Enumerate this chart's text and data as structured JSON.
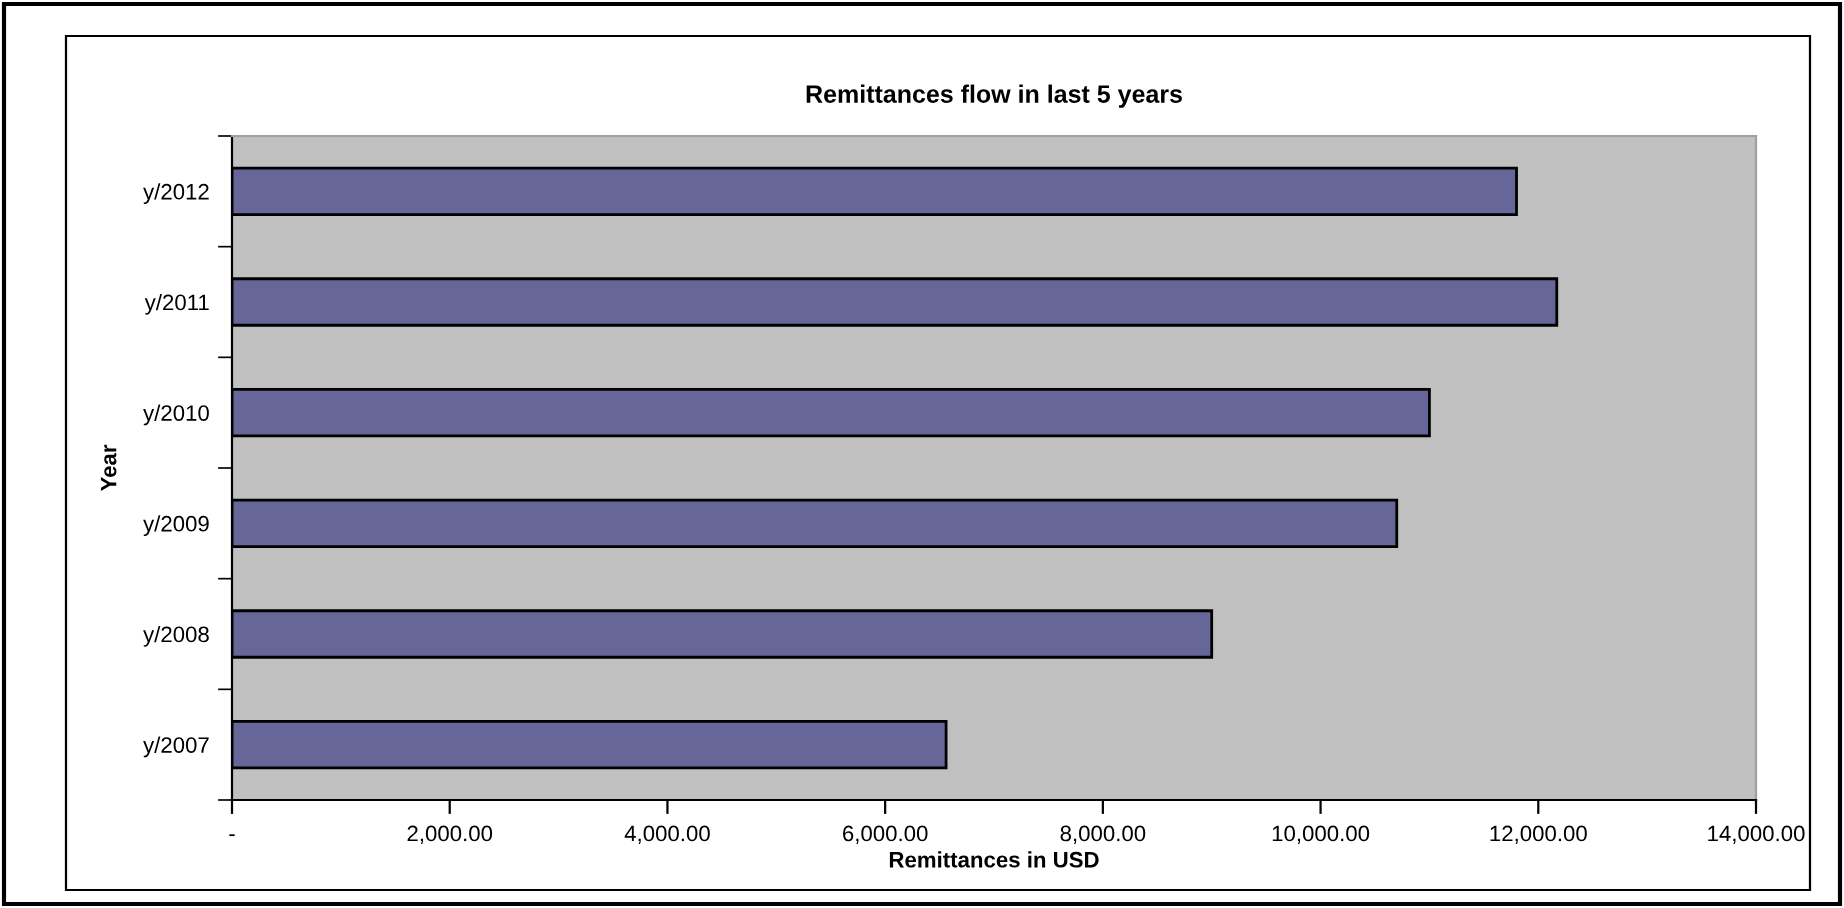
{
  "chart_data": {
    "type": "bar",
    "orientation": "horizontal",
    "title": "Remittances flow in last 5 years",
    "xlabel": "Remittances in USD",
    "ylabel": "Year",
    "categories": [
      "y/2012",
      "y/2011",
      "y/2010",
      "y/2009",
      "y/2008",
      "y/2007"
    ],
    "values": [
      11800,
      12170,
      11000,
      10700,
      9000,
      6560
    ],
    "color": "#666699",
    "xlim": [
      0,
      14000
    ],
    "xticks": [
      {
        "value": 0,
        "label": "-"
      },
      {
        "value": 2000,
        "label": "2,000.00"
      },
      {
        "value": 4000,
        "label": "4,000.00"
      },
      {
        "value": 6000,
        "label": "6,000.00"
      },
      {
        "value": 8000,
        "label": "8,000.00"
      },
      {
        "value": 10000,
        "label": "10,000.00"
      },
      {
        "value": 12000,
        "label": "12,000.00"
      },
      {
        "value": 14000,
        "label": "14,000.00"
      }
    ],
    "grid": false,
    "legend": false
  }
}
